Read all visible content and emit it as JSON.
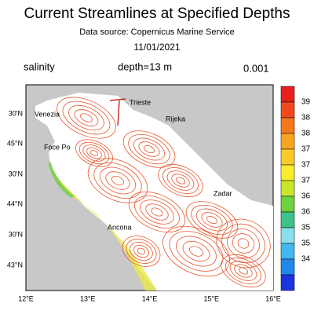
{
  "header": {
    "title": "Current Streamlines at Specified Depths",
    "source": "Data source: Copernicus Marine Service",
    "date": "11/01/2021"
  },
  "info": {
    "variable": "salinity",
    "depth": "depth=13 m",
    "scale": "0.001"
  },
  "colorbar": {
    "labels": [
      "39",
      "38",
      "38",
      "37",
      "37",
      "37",
      "36",
      "36",
      "35",
      "35",
      "34"
    ]
  },
  "map": {
    "lat_labels": [
      "30'N",
      "45°N",
      "30'N",
      "44°N",
      "30'N",
      "43°N"
    ],
    "lon_labels": [
      "12°E",
      "13°E",
      "14°E",
      "15°E",
      "16°E"
    ],
    "places": [
      "Venezia",
      "Trieste",
      "Rijeka",
      "Foce Po",
      "Zadar",
      "Ancona"
    ]
  }
}
